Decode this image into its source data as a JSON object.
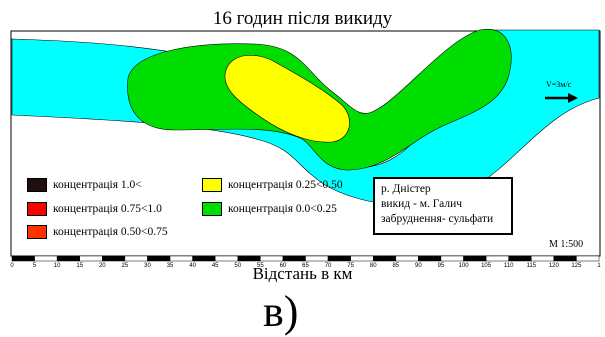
{
  "title": "16 годин після викиду",
  "legend": [
    {
      "label": "концентрація  1.0<",
      "color": "#1f0f0f"
    },
    {
      "label": "концентрація  0.75<1.0",
      "color": "#ff0000"
    },
    {
      "label": "концентрація  0.50<0.75",
      "color": "#ff3300"
    },
    {
      "label": "концентрація  0.25<0.50",
      "color": "#ffff00"
    },
    {
      "label": "концентрація  0.0<0.25",
      "color": "#00dd00"
    }
  ],
  "river_color": "#00ffff",
  "info": {
    "line1": "р. Дністер",
    "line2": "викид - м. Галич",
    "line3": "забруднення- сульфати"
  },
  "scale_label": "М 1:500",
  "velocity_label": "V=3м/с",
  "axis": {
    "title": "Відстань в км",
    "ticks": [
      "0",
      "5",
      "10",
      "15",
      "20",
      "25",
      "30",
      "35",
      "40",
      "45",
      "50",
      "55",
      "60",
      "65",
      "70",
      "75",
      "80",
      "85",
      "90",
      "95",
      "100",
      "105",
      "110",
      "115",
      "120",
      "125",
      "1"
    ]
  },
  "panel_letter": "в)"
}
